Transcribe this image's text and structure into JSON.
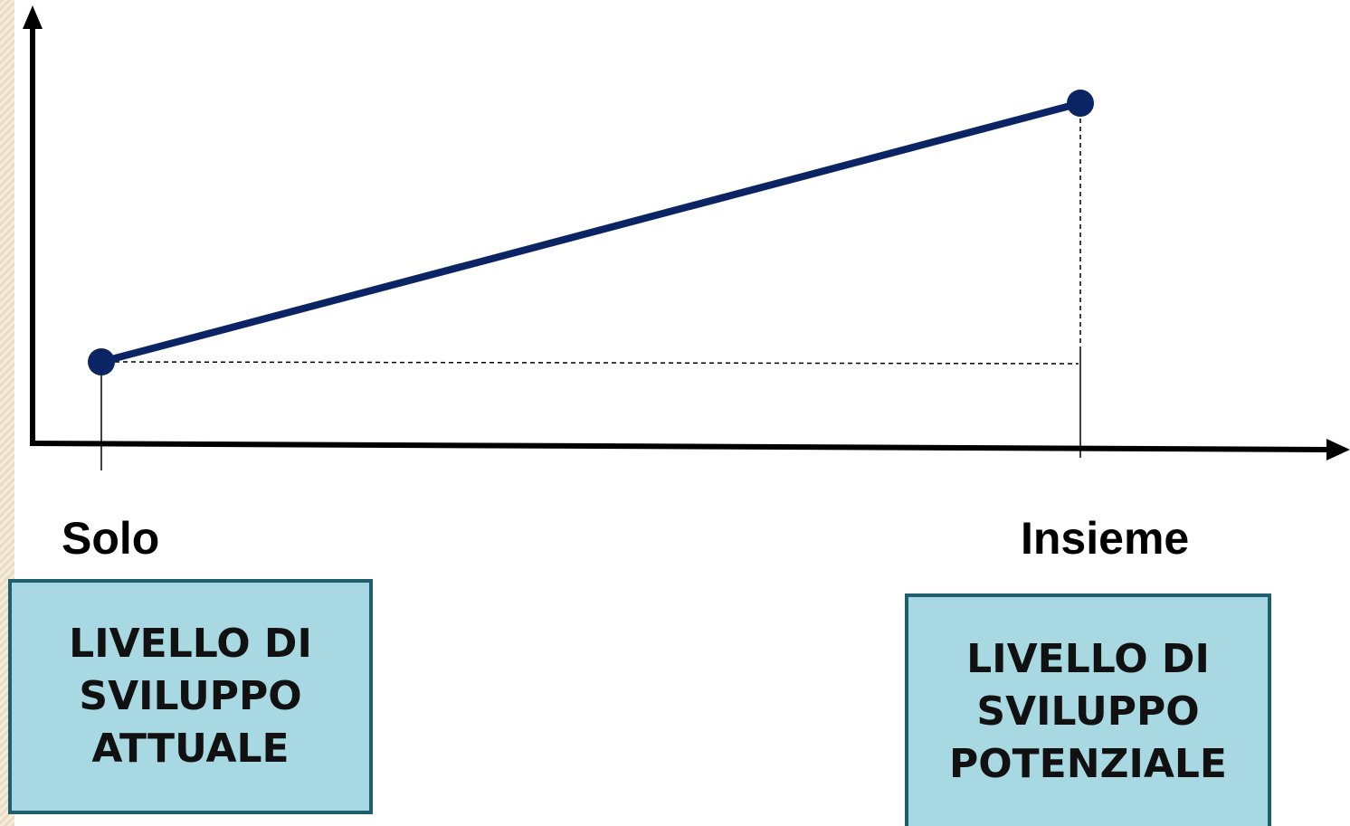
{
  "chart_data": {
    "type": "line",
    "xlabel": "",
    "ylabel": "",
    "categories": [
      "Solo",
      "Insieme"
    ],
    "series": [
      {
        "values": [
          1,
          4
        ]
      }
    ],
    "colors": {
      "line": "#0b2463",
      "axis": "#000000",
      "box_fill": "#a8d8e2",
      "box_border": "#1e5f6e"
    }
  },
  "labels": {
    "left": "Solo",
    "right": "Insieme"
  },
  "boxes": {
    "actual": {
      "line1": "LIVELLO DI",
      "line2": "SVILUPPO",
      "line3": "ATTUALE"
    },
    "potential": {
      "line1": "LIVELLO DI",
      "line2": "SVILUPPO",
      "line3": "POTENZIALE"
    }
  }
}
